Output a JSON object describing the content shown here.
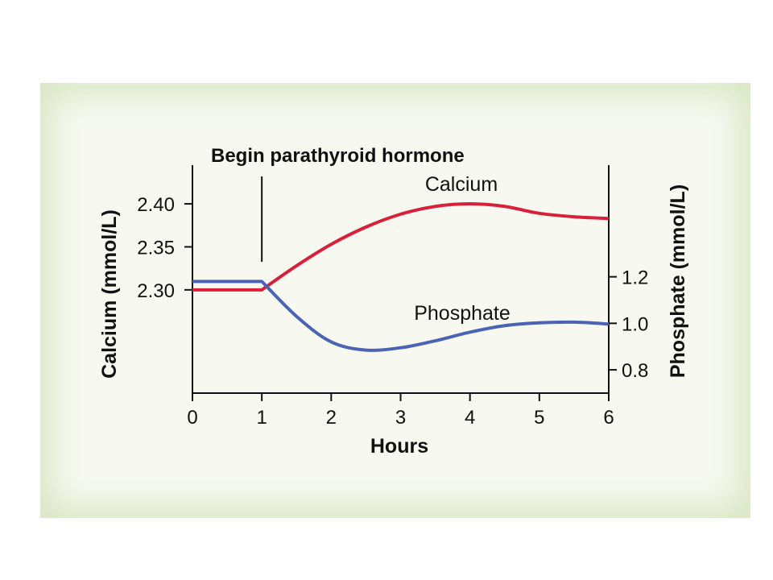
{
  "chart_data": {
    "type": "line",
    "annotation": {
      "text": "Begin parathyroid hormone",
      "x": 1
    },
    "x_axis": {
      "label": "Hours",
      "range": [
        0,
        6
      ],
      "ticks": [
        "0",
        "1",
        "2",
        "3",
        "4",
        "5",
        "6"
      ]
    },
    "y_left": {
      "label": "Calcium (mmol/L)",
      "range": [
        2.18,
        2.445
      ],
      "ticks": [
        "2.40",
        "2.35",
        "2.30"
      ],
      "tick_values": [
        2.4,
        2.35,
        2.3
      ]
    },
    "y_right": {
      "label": "Phosphate (mmol/L)",
      "range": [
        0.7,
        1.68
      ],
      "ticks": [
        "1.2",
        "1.0",
        "0.8"
      ],
      "tick_values": [
        1.2,
        1.0,
        0.8
      ]
    },
    "grid": false,
    "series": [
      {
        "name": "Calcium",
        "axis": "left",
        "color": "#d8203a",
        "x": [
          0,
          1,
          1.5,
          2,
          2.5,
          3,
          3.5,
          4,
          4.5,
          5,
          5.5,
          6
        ],
        "y": [
          2.3,
          2.3,
          2.328,
          2.353,
          2.373,
          2.388,
          2.397,
          2.4,
          2.397,
          2.389,
          2.385,
          2.383
        ]
      },
      {
        "name": "Phosphate",
        "axis": "right",
        "color": "#4a63b4",
        "x": [
          0,
          1,
          1.5,
          2,
          2.5,
          3,
          3.5,
          4,
          4.5,
          5,
          5.5,
          6
        ],
        "y": [
          1.18,
          1.18,
          1.03,
          0.92,
          0.885,
          0.895,
          0.925,
          0.962,
          0.99,
          1.002,
          1.005,
          0.997
        ]
      }
    ]
  }
}
